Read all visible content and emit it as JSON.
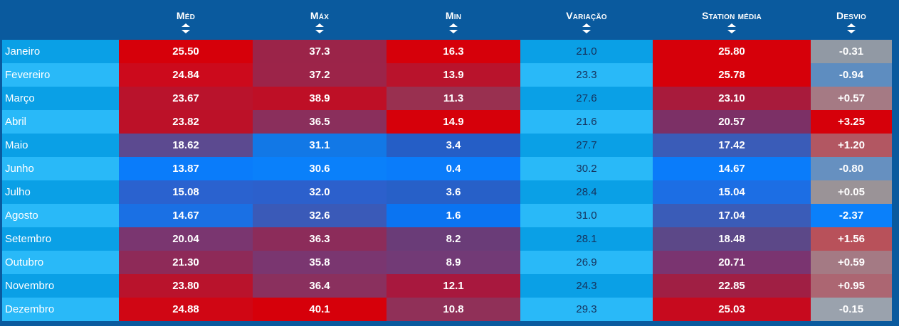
{
  "table": {
    "headers": [
      "",
      "Méd",
      "Máx",
      "Min",
      "Variação",
      "Station média",
      "Desvio"
    ],
    "rows": [
      {
        "month": "Janeiro",
        "med": "25.50",
        "max": "37.3",
        "min": "16.3",
        "var": "21.0",
        "station": "25.80",
        "desvio": "-0.31",
        "colors": {
          "med": "#d6000a",
          "max": "#9b2449",
          "min": "#d6000a",
          "station": "#d6000a",
          "desvio": "#9199a4"
        }
      },
      {
        "month": "Fevereiro",
        "med": "24.84",
        "max": "37.2",
        "min": "13.9",
        "var": "23.3",
        "station": "25.78",
        "desvio": "-0.94",
        "colors": {
          "med": "#cc0a1c",
          "max": "#9c2449",
          "min": "#b9132c",
          "station": "#d6000a",
          "desvio": "#5e8dc0"
        }
      },
      {
        "month": "Março",
        "med": "23.67",
        "max": "38.9",
        "min": "11.3",
        "var": "27.6",
        "station": "23.10",
        "desvio": "+0.57",
        "colors": {
          "med": "#b9132c",
          "max": "#be0f26",
          "min": "#993050",
          "station": "#a81b3c",
          "desvio": "#a57a84"
        }
      },
      {
        "month": "Abril",
        "med": "23.82",
        "max": "36.5",
        "min": "14.9",
        "var": "21.6",
        "station": "20.57",
        "desvio": "+3.25",
        "colors": {
          "med": "#bc1128",
          "max": "#8a2f5c",
          "min": "#d6000a",
          "station": "#7c3066",
          "desvio": "#d6000a"
        }
      },
      {
        "month": "Maio",
        "med": "18.62",
        "max": "31.1",
        "min": "3.4",
        "var": "27.7",
        "station": "17.42",
        "desvio": "+1.20",
        "colors": {
          "med": "#5c4a90",
          "max": "#1278e6",
          "min": "#255ec6",
          "station": "#3a5cb8",
          "desvio": "#b25762"
        }
      },
      {
        "month": "Junho",
        "med": "13.87",
        "max": "30.6",
        "min": "0.4",
        "var": "30.2",
        "station": "14.67",
        "desvio": "-0.80",
        "colors": {
          "med": "#0a7cfa",
          "max": "#0a80fa",
          "min": "#0a7cfa",
          "station": "#0a7cfa",
          "desvio": "#6690c0"
        }
      },
      {
        "month": "Julho",
        "med": "15.08",
        "max": "32.0",
        "min": "3.6",
        "var": "28.4",
        "station": "15.04",
        "desvio": "+0.05",
        "colors": {
          "med": "#2a62cf",
          "max": "#2c60cc",
          "min": "#2760c8",
          "station": "#1c6ee4",
          "desvio": "#9a9397"
        }
      },
      {
        "month": "Agosto",
        "med": "14.67",
        "max": "32.6",
        "min": "1.6",
        "var": "31.0",
        "station": "17.04",
        "desvio": "-2.37",
        "colors": {
          "med": "#1a70e4",
          "max": "#3a5ab8",
          "min": "#0a74f2",
          "station": "#3a5cb8",
          "desvio": "#0a80fa"
        }
      },
      {
        "month": "Setembro",
        "med": "20.04",
        "max": "36.3",
        "min": "8.2",
        "var": "28.1",
        "station": "18.48",
        "desvio": "+1.56",
        "colors": {
          "med": "#7a3670",
          "max": "#8c2c5a",
          "min": "#6a3c78",
          "station": "#5c4888",
          "desvio": "#b8515a"
        }
      },
      {
        "month": "Outubro",
        "med": "21.30",
        "max": "35.8",
        "min": "8.9",
        "var": "26.9",
        "station": "20.71",
        "desvio": "+0.59",
        "colors": {
          "med": "#8e2a58",
          "max": "#7a3670",
          "min": "#723a76",
          "station": "#7a3470",
          "desvio": "#a47a84"
        }
      },
      {
        "month": "Novembro",
        "med": "23.80",
        "max": "36.4",
        "min": "12.1",
        "var": "24.3",
        "station": "22.85",
        "desvio": "+0.95",
        "colors": {
          "med": "#b9132c",
          "max": "#8a305e",
          "min": "#a8183e",
          "station": "#a01f44",
          "desvio": "#ac6672"
        }
      },
      {
        "month": "Dezembro",
        "med": "24.88",
        "max": "40.1",
        "min": "10.8",
        "var": "29.3",
        "station": "25.03",
        "desvio": "-0.15",
        "colors": {
          "med": "#d00614",
          "max": "#d6000a",
          "min": "#903058",
          "station": "#c70a1e",
          "desvio": "#9aa2ad"
        }
      }
    ]
  },
  "colors": {
    "background": "#0a5a9e",
    "header_text": "#ffffff",
    "row_odd": "#0aa0e6",
    "row_even": "#29b9f8",
    "variation_text": "#16325c"
  },
  "icons": {
    "sort": "sort-arrows-icon"
  }
}
